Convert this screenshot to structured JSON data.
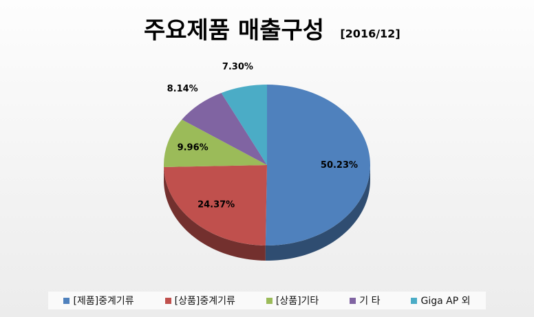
{
  "chart_data": {
    "type": "pie",
    "title": "주요제품 매출구성",
    "subtitle": "[2016/12]",
    "categories": [
      "[제품]중계기류",
      "[상품]중계기류",
      "[상품]기타",
      "기 타",
      "Giga AP 외"
    ],
    "values": [
      50.23,
      24.37,
      9.96,
      8.14,
      7.3
    ],
    "value_labels": [
      "50.23%",
      "24.37%",
      "9.96%",
      "8.14%",
      "7.30%"
    ],
    "colors": [
      "#4f81bd",
      "#c0504d",
      "#9bbb59",
      "#8064a2",
      "#4bacc6"
    ],
    "legend": "bottom"
  }
}
